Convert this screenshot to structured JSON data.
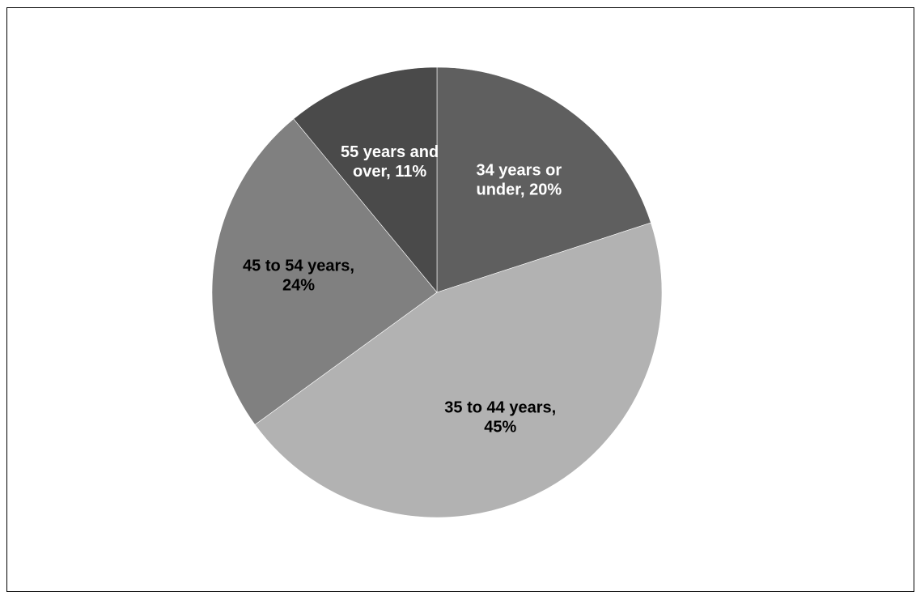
{
  "chart_data": {
    "type": "pie",
    "title": "",
    "start_angle_deg": 0,
    "direction": "clockwise",
    "slices": [
      {
        "label": "34 years or under",
        "value": 20,
        "display": [
          "34 years or",
          "under, 20%"
        ],
        "color": "#5f5f5f",
        "label_color": "#ffffff"
      },
      {
        "label": "35 to 44 years",
        "value": 45,
        "display": [
          "35 to 44 years,",
          "45%"
        ],
        "color": "#b2b2b2",
        "label_color": "#000000"
      },
      {
        "label": "45 to 54 years",
        "value": 24,
        "display": [
          "45 to 54 years,",
          "24%"
        ],
        "color": "#808080",
        "label_color": "#000000"
      },
      {
        "label": "55 years and over",
        "value": 11,
        "display": [
          "55 years and",
          "over, 11%"
        ],
        "color": "#4a4a4a",
        "label_color": "#ffffff"
      }
    ]
  }
}
